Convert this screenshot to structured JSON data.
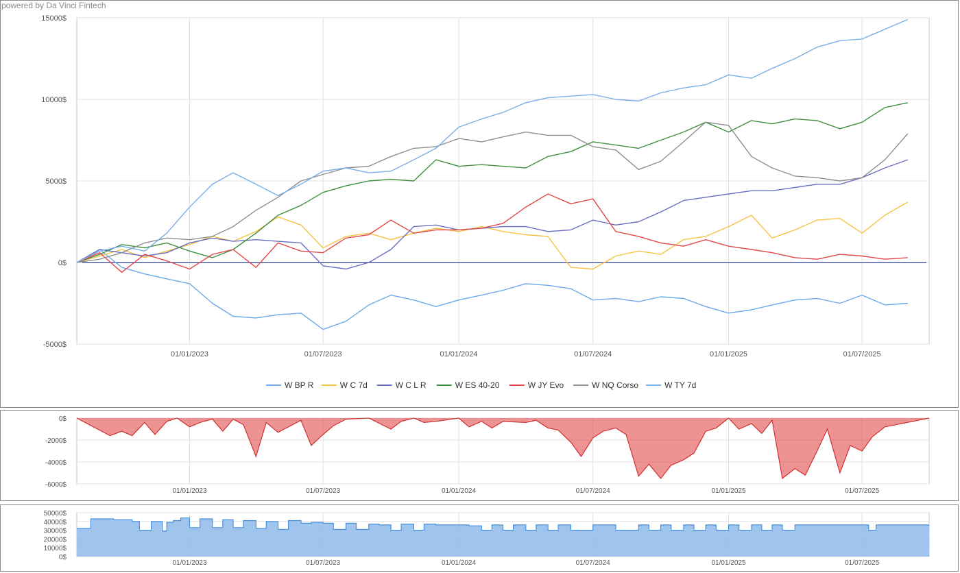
{
  "powered_by": "powered by Da Vinci Fintech",
  "chart_data": [
    {
      "type": "line",
      "name": "equity",
      "y_ticks": [
        "15000$",
        "10000$",
        "5000$",
        "0$",
        "-5000$"
      ],
      "y_tick_values": [
        15000,
        10000,
        5000,
        0,
        -5000
      ],
      "ylim": [
        -5000,
        15000
      ],
      "x_ticks": [
        "01/01/2023",
        "01/07/2023",
        "01/01/2024",
        "01/07/2024",
        "01/01/2025",
        "01/07/2025"
      ],
      "xlim": [
        "2022-08-01",
        "2025-09-30"
      ],
      "grid": true,
      "legend_position": "bottom-center",
      "dates": [
        "2022-08",
        "2022-09",
        "2022-10",
        "2022-11",
        "2022-12",
        "2023-01",
        "2023-02",
        "2023-03",
        "2023-04",
        "2023-05",
        "2023-06",
        "2023-07",
        "2023-08",
        "2023-09",
        "2023-10",
        "2023-11",
        "2023-12",
        "2024-01",
        "2024-02",
        "2024-03",
        "2024-04",
        "2024-05",
        "2024-06",
        "2024-07",
        "2024-08",
        "2024-09",
        "2024-10",
        "2024-11",
        "2024-12",
        "2025-01",
        "2025-02",
        "2025-03",
        "2025-04",
        "2025-05",
        "2025-06",
        "2025-07",
        "2025-08",
        "2025-09"
      ],
      "series": [
        {
          "name": "W BP R",
          "color": "#6aa9ea",
          "values": [
            0,
            800,
            -300,
            -700,
            -1000,
            -1300,
            -2500,
            -3300,
            -3400,
            -3200,
            -3100,
            -4100,
            -3600,
            -2600,
            -2000,
            -2300,
            -2700,
            -2300,
            -2000,
            -1700,
            -1300,
            -1400,
            -1600,
            -2300,
            -2200,
            -2400,
            -2100,
            -2200,
            -2700,
            -3100,
            -2900,
            -2600,
            -2300,
            -2200,
            -2500,
            -2000,
            -2600,
            -2500
          ]
        },
        {
          "name": "W C 7d",
          "color": "#f7c242",
          "values": [
            0,
            400,
            800,
            300,
            700,
            1100,
            1600,
            1300,
            1900,
            2800,
            2300,
            900,
            1600,
            1800,
            1400,
            1800,
            2100,
            1900,
            2200,
            1900,
            1700,
            1600,
            -300,
            -400,
            400,
            700,
            500,
            1400,
            1600,
            2200,
            2900,
            1500,
            2000,
            2600,
            2700,
            1800,
            2900,
            3700
          ]
        },
        {
          "name": "W C L R",
          "color": "#6a6fc4",
          "values": [
            0,
            800,
            600,
            400,
            600,
            1200,
            1500,
            1300,
            1400,
            1300,
            1200,
            -200,
            -400,
            0,
            800,
            2200,
            2300,
            2000,
            2100,
            2200,
            2200,
            1900,
            2000,
            2600,
            2300,
            2500,
            3100,
            3800,
            4000,
            4200,
            4400,
            4400,
            4600,
            4800,
            4800,
            5200,
            5800,
            6300
          ]
        },
        {
          "name": "W ES 40-20",
          "color": "#3f8f3f",
          "values": [
            0,
            500,
            1100,
            900,
            1200,
            700,
            300,
            800,
            1800,
            2900,
            3500,
            4300,
            4700,
            5000,
            5100,
            5000,
            6300,
            5900,
            6000,
            5900,
            5800,
            6500,
            6800,
            7400,
            7200,
            7000,
            7500,
            8000,
            8600,
            8000,
            8700,
            8500,
            8800,
            8700,
            8200,
            8600,
            9500,
            9800
          ]
        },
        {
          "name": "W JY Evo",
          "color": "#e24848",
          "values": [
            0,
            600,
            -600,
            500,
            100,
            -400,
            500,
            800,
            -300,
            1200,
            700,
            600,
            1500,
            1700,
            2600,
            1800,
            2000,
            2000,
            2100,
            2400,
            3400,
            4200,
            3600,
            3900,
            1900,
            1600,
            1200,
            1000,
            1400,
            1000,
            800,
            600,
            300,
            200,
            500,
            400,
            200,
            300
          ]
        },
        {
          "name": "W NQ Corso",
          "color": "#8f8f8f",
          "values": [
            0,
            200,
            600,
            1200,
            1500,
            1400,
            1600,
            2200,
            3200,
            4000,
            5000,
            5400,
            5800,
            5900,
            6500,
            7000,
            7100,
            7600,
            7400,
            7700,
            8000,
            7800,
            7800,
            7100,
            6900,
            5700,
            6200,
            7400,
            8600,
            8400,
            6500,
            5800,
            5300,
            5200,
            5000,
            5200,
            6300,
            7900
          ]
        },
        {
          "name": "W TY 7d",
          "color": "#7aaee8",
          "values": [
            0,
            700,
            1000,
            700,
            1800,
            3400,
            4800,
            5500,
            4800,
            4100,
            4800,
            5600,
            5800,
            5500,
            5600,
            6300,
            7000,
            8300,
            8800,
            9200,
            9800,
            10100,
            10200,
            10300,
            10000,
            9900,
            10400,
            10700,
            10900,
            11500,
            11300,
            11900,
            12500,
            13200,
            13600,
            13700,
            14300,
            14900
          ]
        }
      ]
    },
    {
      "type": "area",
      "name": "drawdown",
      "color": "#e34b4b",
      "y_ticks": [
        "0$",
        "-2000$",
        "-4000$",
        "-6000$"
      ],
      "y_tick_values": [
        0,
        -2000,
        -4000,
        -6000
      ],
      "ylim": [
        -6000,
        0
      ],
      "x_ticks": [
        "01/01/2023",
        "01/07/2023",
        "01/01/2024",
        "01/07/2024",
        "01/01/2025",
        "01/07/2025"
      ],
      "dates": [
        "2022-08-01",
        "2022-09-15",
        "2022-10-01",
        "2022-10-15",
        "2022-11-01",
        "2022-11-15",
        "2022-12-01",
        "2022-12-15",
        "2023-01-01",
        "2023-01-15",
        "2023-02-01",
        "2023-02-15",
        "2023-03-01",
        "2023-03-15",
        "2023-04-01",
        "2023-04-15",
        "2023-05-01",
        "2023-05-15",
        "2023-06-01",
        "2023-06-15",
        "2023-07-01",
        "2023-07-15",
        "2023-08-01",
        "2023-09-01",
        "2023-10-01",
        "2023-10-15",
        "2023-11-01",
        "2023-11-15",
        "2023-12-01",
        "2024-01-01",
        "2024-01-15",
        "2024-02-01",
        "2024-02-15",
        "2024-03-01",
        "2024-04-01",
        "2024-04-15",
        "2024-05-01",
        "2024-05-15",
        "2024-06-01",
        "2024-06-15",
        "2024-07-01",
        "2024-07-15",
        "2024-08-01",
        "2024-08-15",
        "2024-09-01",
        "2024-09-15",
        "2024-10-01",
        "2024-10-15",
        "2024-11-01",
        "2024-11-15",
        "2024-12-01",
        "2024-12-15",
        "2025-01-01",
        "2025-01-15",
        "2025-02-01",
        "2025-02-15",
        "2025-03-01",
        "2025-03-15",
        "2025-04-01",
        "2025-04-15",
        "2025-05-01",
        "2025-05-15",
        "2025-06-01",
        "2025-06-15",
        "2025-07-01",
        "2025-07-15",
        "2025-08-01",
        "2025-09-30"
      ],
      "values": [
        0,
        -1600,
        -1200,
        -1600,
        -400,
        -1500,
        -300,
        0,
        -800,
        -400,
        -100,
        -1200,
        -100,
        -600,
        -3500,
        -400,
        -1300,
        -800,
        -200,
        -2500,
        -1500,
        -700,
        -100,
        0,
        -1000,
        -300,
        0,
        -400,
        -300,
        0,
        -800,
        -300,
        -900,
        -300,
        -400,
        -200,
        -900,
        -1100,
        -2200,
        -3500,
        -1800,
        -1200,
        -900,
        -1500,
        -5300,
        -4200,
        -5500,
        -4300,
        -3800,
        -3200,
        -1200,
        -900,
        0,
        -1000,
        -500,
        -1400,
        -200,
        -5500,
        -4600,
        -5200,
        -3000,
        -1000,
        -5000,
        -2500,
        -3000,
        -1700,
        -800,
        0
      ]
    },
    {
      "type": "area",
      "name": "margin",
      "color": "#8ebbec",
      "y_ticks": [
        "50000$",
        "40000$",
        "30000$",
        "20000$",
        "10000$",
        "0$"
      ],
      "y_tick_values": [
        50000,
        40000,
        30000,
        20000,
        10000,
        0
      ],
      "ylim": [
        0,
        50000
      ],
      "x_ticks": [
        "01/01/2023",
        "01/07/2023",
        "01/01/2024",
        "01/07/2024",
        "01/01/2025",
        "01/07/2025"
      ],
      "dates": [
        "2022-08-01",
        "2022-08-20",
        "2022-09-20",
        "2022-10-15",
        "2022-10-25",
        "2022-11-10",
        "2022-11-25",
        "2022-12-01",
        "2022-12-10",
        "2022-12-20",
        "2023-01-01",
        "2023-01-15",
        "2023-02-01",
        "2023-02-15",
        "2023-03-01",
        "2023-03-15",
        "2023-04-01",
        "2023-04-15",
        "2023-05-01",
        "2023-05-15",
        "2023-06-01",
        "2023-06-15",
        "2023-07-01",
        "2023-07-15",
        "2023-08-01",
        "2023-08-15",
        "2023-09-01",
        "2023-09-15",
        "2023-10-01",
        "2023-10-15",
        "2023-11-01",
        "2023-11-15",
        "2023-12-01",
        "2024-01-01",
        "2024-01-15",
        "2024-02-01",
        "2024-02-15",
        "2024-03-01",
        "2024-03-15",
        "2024-04-01",
        "2024-04-15",
        "2024-05-01",
        "2024-05-15",
        "2024-06-01",
        "2024-07-01",
        "2024-08-01",
        "2024-09-01",
        "2024-09-15",
        "2024-10-01",
        "2024-10-15",
        "2024-11-01",
        "2024-11-15",
        "2024-12-01",
        "2024-12-15",
        "2025-01-01",
        "2025-01-15",
        "2025-02-01",
        "2025-02-15",
        "2025-03-01",
        "2025-03-15",
        "2025-04-01",
        "2025-06-01",
        "2025-07-01",
        "2025-07-10",
        "2025-07-20",
        "2025-09-30"
      ],
      "values": [
        32000,
        43000,
        42000,
        40000,
        30000,
        40000,
        29000,
        39000,
        41000,
        44000,
        33000,
        43000,
        33000,
        42000,
        33000,
        41000,
        32000,
        40000,
        31000,
        41000,
        38000,
        39000,
        38000,
        31000,
        38000,
        31000,
        37000,
        36000,
        30000,
        37000,
        30000,
        37000,
        36000,
        36000,
        35000,
        30000,
        36000,
        30000,
        36000,
        30000,
        36000,
        30000,
        36000,
        30000,
        36000,
        30000,
        36000,
        30000,
        36000,
        30000,
        36000,
        30000,
        36000,
        30000,
        36000,
        30000,
        36000,
        30000,
        36000,
        30000,
        36000,
        36000,
        36000,
        30000,
        36000,
        36000
      ]
    }
  ]
}
